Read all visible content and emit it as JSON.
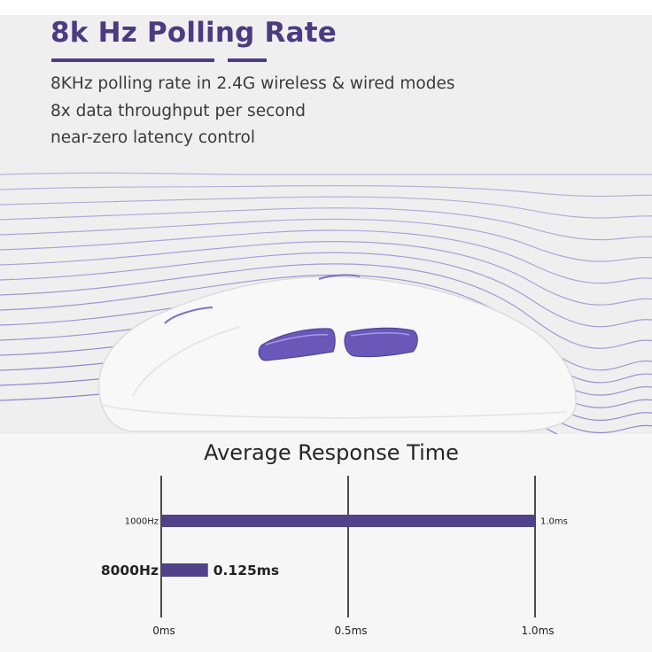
{
  "headline": "8k Hz Polling Rate",
  "features": [
    "8KHz polling rate in 2.4G wireless & wired modes",
    "8x data throughput per second",
    "near-zero latency control"
  ],
  "colors": {
    "accent": "#4d3c86",
    "bar": "#4f4288",
    "wave_lines": "#8e83cc",
    "mouse_buttons": "#6a58b8"
  },
  "chart_data": {
    "type": "bar",
    "orientation": "horizontal",
    "title": "Average Response Time",
    "categories": [
      "1000Hz",
      "8000Hz"
    ],
    "values": [
      1.0,
      0.125
    ],
    "value_labels": [
      "1.0ms",
      "0.125ms"
    ],
    "x_ticks": [
      0,
      0.5,
      1.0
    ],
    "x_tick_labels": [
      "0ms",
      "0.5ms",
      "1.0ms"
    ],
    "xlim": [
      0,
      1.0
    ],
    "grid": true,
    "legend": "none"
  }
}
